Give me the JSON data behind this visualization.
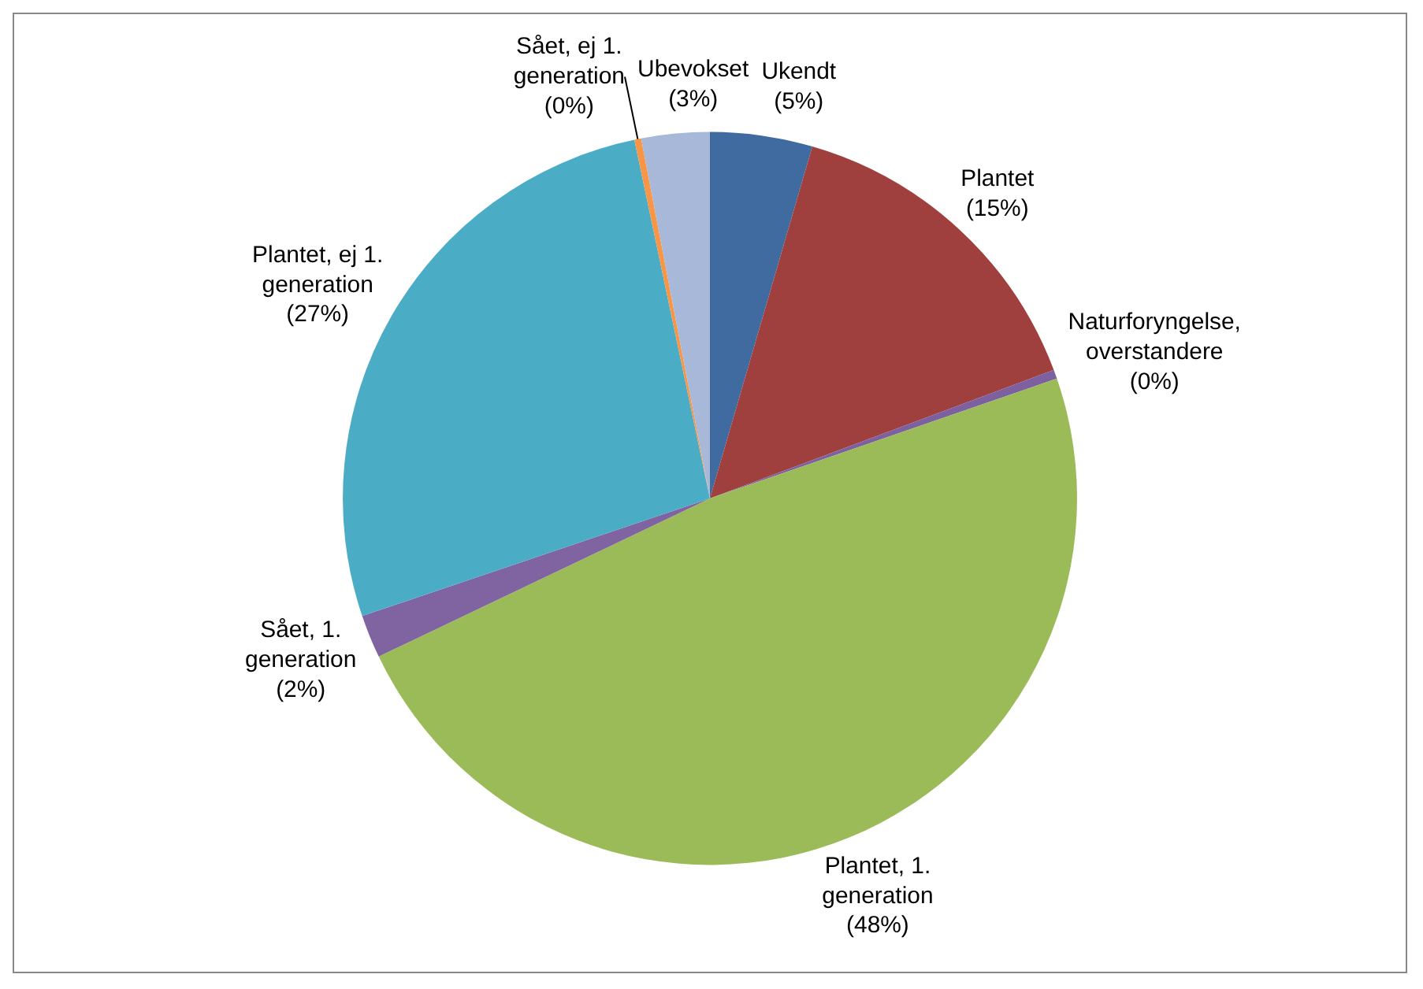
{
  "chart_data": {
    "type": "pie",
    "categories": [
      "Ukendt",
      "Plantet",
      "Naturforyngelse, overstandere",
      "Plantet, 1. generation",
      "Sået, 1. generation",
      "Plantet, ej 1. generation",
      "Sået, ej 1. generation",
      "Ubevokset"
    ],
    "values": [
      4.5,
      14.8,
      0.4,
      48.2,
      1.9,
      26.9,
      0.3,
      3.0
    ],
    "value_labels": [
      "(5%)",
      "(15%)",
      "(0%)",
      "(48%)",
      "(2%)",
      "(27%)",
      "(0%)",
      "(3%)"
    ],
    "colors": [
      "#3f6ba0",
      "#a0403e",
      "#7d609f",
      "#9bbb59",
      "#8064a2",
      "#4bacc6",
      "#f79646",
      "#a7b8d9"
    ],
    "legend": false
  }
}
